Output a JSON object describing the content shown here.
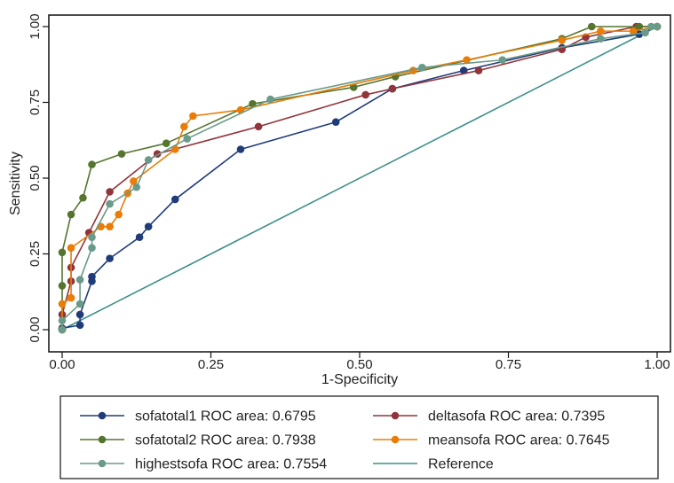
{
  "chart_data": {
    "type": "line",
    "title": "",
    "xlabel": "1-Specificity",
    "ylabel": "Sensitivity",
    "xlim": [
      0,
      1
    ],
    "ylim": [
      0,
      1
    ],
    "x_ticks": [
      "0.00",
      "0.25",
      "0.50",
      "0.75",
      "1.00"
    ],
    "y_ticks": [
      "0.00",
      "0.25",
      "0.50",
      "0.75",
      "1.00"
    ],
    "grid": false,
    "legend_position": "bottom",
    "series": [
      {
        "name": "sofatotal1 ROC area: 0.6795",
        "color": "#1f3c78",
        "x": [
          0,
          0,
          0.03,
          0.03,
          0.05,
          0.05,
          0.08,
          0.13,
          0.145,
          0.19,
          0.3,
          0.46,
          0.555,
          0.675,
          0.84,
          0.97,
          1.0
        ],
        "y": [
          0,
          0.005,
          0.015,
          0.05,
          0.16,
          0.175,
          0.235,
          0.305,
          0.34,
          0.43,
          0.595,
          0.685,
          0.795,
          0.855,
          0.93,
          0.975,
          1.0
        ]
      },
      {
        "name": "deltasofa ROC area: 0.7395",
        "color": "#90353b",
        "x": [
          0,
          0,
          0.015,
          0.015,
          0.045,
          0.08,
          0.16,
          0.33,
          0.51,
          0.555,
          0.7,
          0.84,
          0.88,
          0.965,
          1.0
        ],
        "y": [
          0,
          0.05,
          0.16,
          0.205,
          0.32,
          0.455,
          0.58,
          0.67,
          0.775,
          0.795,
          0.855,
          0.925,
          0.965,
          1.0,
          1.0
        ]
      },
      {
        "name": "sofatotal2 ROC area: 0.7938",
        "color": "#55752f",
        "x": [
          0,
          0,
          0,
          0.015,
          0.035,
          0.05,
          0.1,
          0.175,
          0.32,
          0.49,
          0.56,
          0.84,
          0.89,
          0.97,
          1.0
        ],
        "y": [
          0,
          0.145,
          0.255,
          0.38,
          0.435,
          0.545,
          0.58,
          0.615,
          0.745,
          0.8,
          0.835,
          0.96,
          1.0,
          1.0,
          1.0
        ]
      },
      {
        "name": "meansofa ROC area: 0.7645",
        "color": "#e87d08",
        "x": [
          0,
          0,
          0.015,
          0.015,
          0.065,
          0.08,
          0.095,
          0.11,
          0.12,
          0.19,
          0.205,
          0.22,
          0.3,
          0.59,
          0.68,
          0.84,
          0.905,
          0.96,
          1.0
        ],
        "y": [
          0,
          0.085,
          0.105,
          0.27,
          0.34,
          0.34,
          0.38,
          0.45,
          0.49,
          0.595,
          0.67,
          0.705,
          0.725,
          0.855,
          0.89,
          0.955,
          0.985,
          0.985,
          1.0
        ]
      },
      {
        "name": "highestsofa ROC area: 0.7554",
        "color": "#6a9a89",
        "x": [
          0,
          0,
          0.03,
          0.03,
          0.05,
          0.05,
          0.08,
          0.125,
          0.145,
          0.21,
          0.35,
          0.605,
          0.74,
          0.905,
          0.98,
          0.99,
          1.0
        ],
        "y": [
          0,
          0.03,
          0.085,
          0.165,
          0.27,
          0.305,
          0.415,
          0.47,
          0.56,
          0.63,
          0.76,
          0.865,
          0.89,
          0.96,
          0.98,
          1.0,
          1.0
        ]
      },
      {
        "name": "Reference",
        "color": "#3d8f88",
        "x": [
          0,
          1
        ],
        "y": [
          0,
          1
        ],
        "markers": false
      }
    ]
  }
}
